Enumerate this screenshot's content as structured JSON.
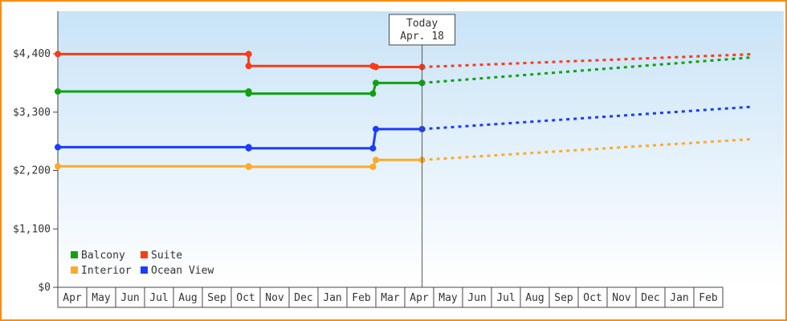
{
  "frame": {
    "border_color": "#ff8c00",
    "background": "#ffffff"
  },
  "chart_data": {
    "type": "line",
    "y_axis": {
      "tick_values": [
        0,
        1100,
        2200,
        3300,
        4400
      ],
      "tick_labels": [
        "$0",
        "$1,100",
        "$2,200",
        "$3,300",
        "$4,400"
      ],
      "ylim": [
        0,
        5200
      ]
    },
    "x_axis": {
      "months": [
        "Apr",
        "May",
        "Jun",
        "Jul",
        "Aug",
        "Sep",
        "Oct",
        "Nov",
        "Dec",
        "Jan",
        "Feb",
        "Mar",
        "Apr",
        "May",
        "Jun",
        "Jul",
        "Aug",
        "Sep",
        "Oct",
        "Nov",
        "Dec",
        "Jan",
        "Feb"
      ]
    },
    "today": {
      "line1": "Today",
      "line2": "Apr. 18",
      "month_unit": 12.6
    },
    "plot_bg": {
      "top": "#c9e3f7",
      "mid": "#e9f4fc",
      "bottom": "#ffffff"
    },
    "axis_color": "#444444",
    "today_line_color": "#555555",
    "series": [
      {
        "name": "Balcony",
        "color": "#12a012",
        "points": [
          [
            0,
            3690
          ],
          [
            6.6,
            3690
          ],
          [
            6.6,
            3650
          ],
          [
            10.9,
            3650
          ],
          [
            11.0,
            3850
          ],
          [
            12.6,
            3850
          ]
        ],
        "forecast_end": [
          23.97,
          4330
        ]
      },
      {
        "name": "Suite",
        "color": "#fb3b16",
        "points": [
          [
            0,
            4395
          ],
          [
            6.6,
            4395
          ],
          [
            6.6,
            4170
          ],
          [
            10.9,
            4170
          ],
          [
            11.0,
            4150
          ],
          [
            12.6,
            4150
          ]
        ],
        "forecast_end": [
          23.97,
          4390
        ]
      },
      {
        "name": "Interior",
        "color": "#ffaa28",
        "points": [
          [
            0,
            2280
          ],
          [
            6.6,
            2280
          ],
          [
            6.6,
            2270
          ],
          [
            10.9,
            2270
          ],
          [
            11.0,
            2400
          ],
          [
            12.6,
            2400
          ]
        ],
        "forecast_end": [
          23.97,
          2790
        ]
      },
      {
        "name": "Ocean View",
        "color": "#1a3cff",
        "points": [
          [
            0,
            2640
          ],
          [
            6.6,
            2640
          ],
          [
            6.6,
            2620
          ],
          [
            10.9,
            2620
          ],
          [
            11.0,
            2980
          ],
          [
            12.6,
            2980
          ]
        ],
        "forecast_end": [
          23.97,
          3400
        ]
      }
    ],
    "legend": {
      "rows": [
        [
          "Balcony",
          "Suite"
        ],
        [
          "Interior",
          "Ocean View"
        ]
      ]
    }
  }
}
